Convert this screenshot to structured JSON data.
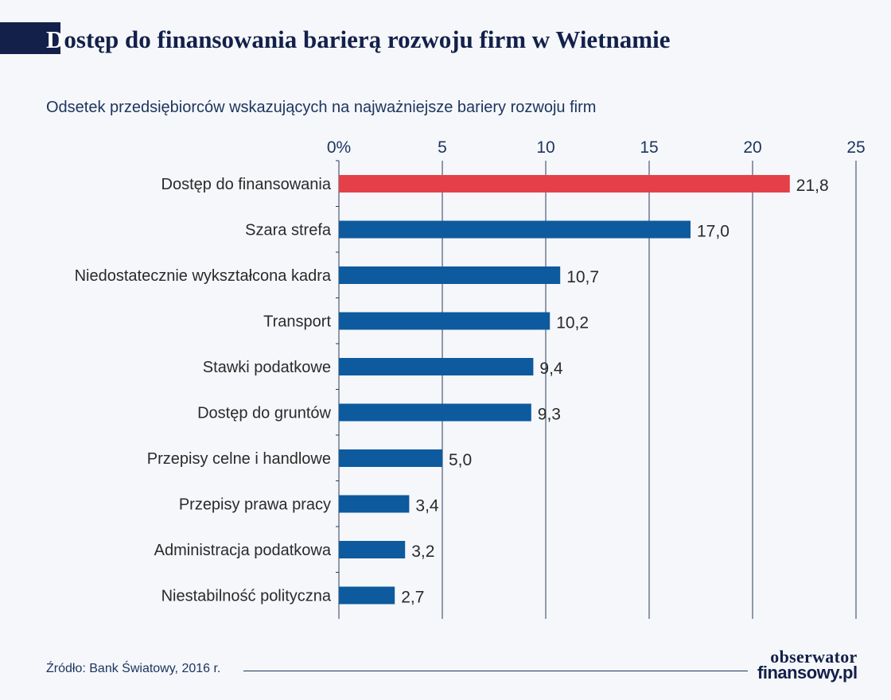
{
  "title_first": "D",
  "title_rest": "ostęp do finansowania barierą rozwoju firm w Wietnamie",
  "subtitle": "Odsetek przedsiębiorców wskazujących na najważniejsze bariery rozwoju firm",
  "source": "Źródło: Bank Światowy, 2016 r.",
  "logo": {
    "line1": "obserwator",
    "line2": "finansowy.pl"
  },
  "colors": {
    "highlight": "#e5404a",
    "bar": "#0d5a9e",
    "text": "#1e3560",
    "grid": "#2a3a5a"
  },
  "chart_data": {
    "type": "bar",
    "orientation": "horizontal",
    "categories": [
      "Dostęp do finansowania",
      "Szara strefa",
      "Niedostatecznie wykształcona kadra",
      "Transport",
      "Stawki podatkowe",
      "Dostęp do gruntów",
      "Przepisy celne i handlowe",
      "Przepisy prawa pracy",
      "Administracja podatkowa",
      "Niestabilność polityczna"
    ],
    "values": [
      21.8,
      17.0,
      10.7,
      10.2,
      9.4,
      9.3,
      5.0,
      3.4,
      3.2,
      2.7
    ],
    "value_labels": [
      "21,8",
      "17,0",
      "10,7",
      "10,2",
      "9,4",
      "9,3",
      "5,0",
      "3,4",
      "3,2",
      "2,7"
    ],
    "highlight_index": 0,
    "xlim": [
      0,
      25
    ],
    "ticks": [
      0,
      5,
      10,
      15,
      20,
      25
    ],
    "tick_labels": [
      "0%",
      "5",
      "10",
      "15",
      "20",
      "25"
    ],
    "axis_position": "top",
    "grid": true
  }
}
